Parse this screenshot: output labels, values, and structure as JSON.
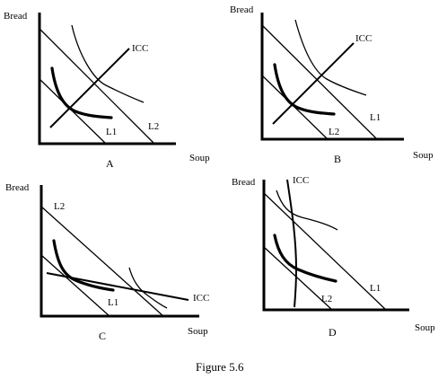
{
  "figure": {
    "caption": "Figure 5.6",
    "panels": [
      {
        "letter": "A",
        "y_axis_label": "Bread",
        "x_axis_label": "Soup",
        "budget_line_labels": [
          "L1",
          "L2"
        ],
        "icc_label": "ICC"
      },
      {
        "letter": "B",
        "y_axis_label": "Bread",
        "x_axis_label": "Soup",
        "budget_line_labels": [
          "L2",
          "L1"
        ],
        "icc_label": "ICC"
      },
      {
        "letter": "C",
        "y_axis_label": "Bread",
        "x_axis_label": "Soup",
        "budget_line_labels": [
          "L2",
          "L1"
        ],
        "icc_label": "ICC"
      },
      {
        "letter": "D",
        "y_axis_label": "Bread",
        "x_axis_label": "Soup",
        "budget_line_labels": [
          "L2",
          "L1"
        ],
        "icc_label": "ICC"
      }
    ]
  }
}
